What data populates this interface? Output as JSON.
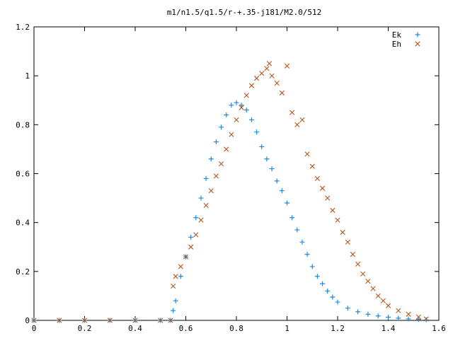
{
  "chart_data": {
    "type": "scatter",
    "title": "m1/n1.5/q1.5/r-+.35-j181/M2.0/512",
    "xlabel": "",
    "ylabel": "",
    "xlim": [
      0,
      1.6
    ],
    "ylim": [
      0,
      1.2
    ],
    "x_ticks": [
      "0",
      "0.2",
      "0.4",
      "0.6",
      "0.8",
      "1",
      "1.2",
      "1.4",
      "1.6"
    ],
    "y_ticks": [
      "0",
      "0.2",
      "0.4",
      "0.6",
      "0.8",
      "1",
      "1.2"
    ],
    "grid": false,
    "legend_position": "top-right",
    "series": [
      {
        "name": "Ek",
        "marker": "plus",
        "color": "#1a8ae5",
        "points": [
          [
            0.0,
            0.0
          ],
          [
            0.1,
            0.0
          ],
          [
            0.2,
            0.0
          ],
          [
            0.3,
            0.0
          ],
          [
            0.4,
            0.0
          ],
          [
            0.5,
            0.0
          ],
          [
            0.54,
            0.0
          ],
          [
            0.55,
            0.04
          ],
          [
            0.56,
            0.08
          ],
          [
            0.58,
            0.18
          ],
          [
            0.6,
            0.26
          ],
          [
            0.62,
            0.34
          ],
          [
            0.64,
            0.42
          ],
          [
            0.66,
            0.5
          ],
          [
            0.68,
            0.58
          ],
          [
            0.7,
            0.66
          ],
          [
            0.72,
            0.73
          ],
          [
            0.74,
            0.79
          ],
          [
            0.76,
            0.84
          ],
          [
            0.78,
            0.88
          ],
          [
            0.8,
            0.89
          ],
          [
            0.82,
            0.88
          ],
          [
            0.84,
            0.86
          ],
          [
            0.86,
            0.82
          ],
          [
            0.88,
            0.77
          ],
          [
            0.9,
            0.71
          ],
          [
            0.92,
            0.66
          ],
          [
            0.94,
            0.62
          ],
          [
            0.96,
            0.57
          ],
          [
            0.98,
            0.53
          ],
          [
            1.0,
            0.48
          ],
          [
            1.02,
            0.42
          ],
          [
            1.04,
            0.37
          ],
          [
            1.06,
            0.32
          ],
          [
            1.08,
            0.27
          ],
          [
            1.1,
            0.22
          ],
          [
            1.12,
            0.18
          ],
          [
            1.14,
            0.15
          ],
          [
            1.16,
            0.12
          ],
          [
            1.18,
            0.095
          ],
          [
            1.2,
            0.075
          ],
          [
            1.24,
            0.05
          ],
          [
            1.28,
            0.035
          ],
          [
            1.32,
            0.025
          ],
          [
            1.36,
            0.018
          ],
          [
            1.4,
            0.013
          ],
          [
            1.44,
            0.009
          ],
          [
            1.48,
            0.006
          ],
          [
            1.52,
            0.004
          ],
          [
            1.55,
            0.002
          ]
        ]
      },
      {
        "name": "Eh",
        "marker": "cross",
        "color": "#b8541a",
        "points": [
          [
            0.0,
            0.0
          ],
          [
            0.1,
            0.0
          ],
          [
            0.2,
            0.0
          ],
          [
            0.3,
            0.0
          ],
          [
            0.4,
            0.0
          ],
          [
            0.5,
            0.0
          ],
          [
            0.54,
            0.0
          ],
          [
            0.55,
            0.14
          ],
          [
            0.56,
            0.18
          ],
          [
            0.58,
            0.22
          ],
          [
            0.6,
            0.26
          ],
          [
            0.62,
            0.3
          ],
          [
            0.64,
            0.35
          ],
          [
            0.66,
            0.41
          ],
          [
            0.68,
            0.47
          ],
          [
            0.7,
            0.53
          ],
          [
            0.72,
            0.59
          ],
          [
            0.74,
            0.64
          ],
          [
            0.76,
            0.7
          ],
          [
            0.78,
            0.76
          ],
          [
            0.8,
            0.82
          ],
          [
            0.82,
            0.87
          ],
          [
            0.84,
            0.92
          ],
          [
            0.86,
            0.96
          ],
          [
            0.88,
            0.99
          ],
          [
            0.9,
            1.01
          ],
          [
            0.92,
            1.03
          ],
          [
            0.93,
            1.05
          ],
          [
            0.94,
            1.0
          ],
          [
            0.96,
            0.97
          ],
          [
            0.98,
            0.93
          ],
          [
            1.0,
            1.04
          ],
          [
            1.02,
            0.85
          ],
          [
            1.04,
            0.8
          ],
          [
            1.06,
            0.82
          ],
          [
            1.08,
            0.68
          ],
          [
            1.1,
            0.63
          ],
          [
            1.12,
            0.58
          ],
          [
            1.14,
            0.54
          ],
          [
            1.16,
            0.5
          ],
          [
            1.18,
            0.45
          ],
          [
            1.2,
            0.41
          ],
          [
            1.22,
            0.36
          ],
          [
            1.24,
            0.32
          ],
          [
            1.26,
            0.27
          ],
          [
            1.28,
            0.23
          ],
          [
            1.3,
            0.19
          ],
          [
            1.32,
            0.16
          ],
          [
            1.34,
            0.13
          ],
          [
            1.36,
            0.1
          ],
          [
            1.38,
            0.08
          ],
          [
            1.4,
            0.06
          ],
          [
            1.44,
            0.04
          ],
          [
            1.48,
            0.025
          ],
          [
            1.52,
            0.014
          ],
          [
            1.55,
            0.006
          ]
        ]
      }
    ]
  }
}
